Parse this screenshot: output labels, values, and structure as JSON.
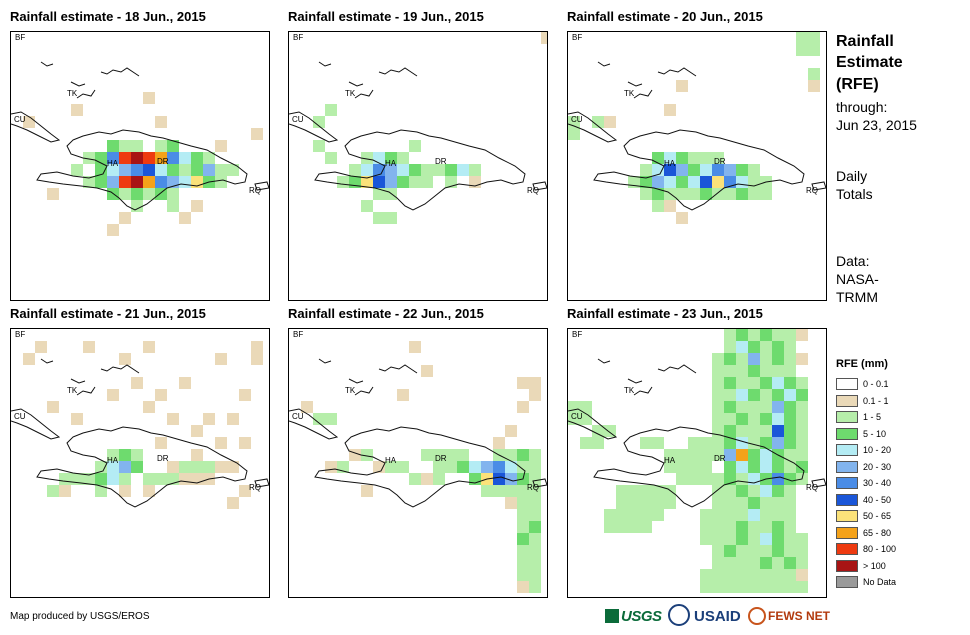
{
  "panels": [
    {
      "title": "Rainfall estimate - 18 Jun., 2015",
      "labels": [
        "BF",
        "CU",
        "TK",
        "HA",
        "DR",
        "RQ"
      ]
    },
    {
      "title": "Rainfall estimate - 19 Jun., 2015",
      "labels": [
        "BF",
        "CU",
        "TK",
        "HA",
        "DR",
        "RQ"
      ]
    },
    {
      "title": "Rainfall estimate - 20 Jun., 2015",
      "labels": [
        "BF",
        "CU",
        "TK",
        "HA",
        "DR",
        "RQ"
      ]
    },
    {
      "title": "Rainfall estimate - 21 Jun., 2015",
      "labels": [
        "BF",
        "CU",
        "TK",
        "HA",
        "DR",
        "RQ"
      ]
    },
    {
      "title": "Rainfall estimate - 22 Jun., 2015",
      "labels": [
        "BF",
        "CU",
        "TK",
        "HA",
        "DR",
        "RQ"
      ]
    },
    {
      "title": "Rainfall estimate - 23 Jun., 2015",
      "labels": [
        "BF",
        "CU",
        "TK",
        "HA",
        "DR",
        "RQ"
      ]
    }
  ],
  "side": {
    "title_line1": "Rainfall",
    "title_line2": "Estimate",
    "title_line3": "(RFE)",
    "through_label": "through:",
    "through_date": "Jun 23, 2015",
    "totals_line1": "Daily",
    "totals_line2": "Totals",
    "data_line1": "Data:",
    "data_line2": "NASA-",
    "data_line3": "TRMM"
  },
  "legend": {
    "title": "RFE (mm)",
    "items": [
      {
        "label": "0 - 0.1",
        "color": "#ffffff"
      },
      {
        "label": "0.1 - 1",
        "color": "#ead9b8"
      },
      {
        "label": "1 - 5",
        "color": "#b6eeaa"
      },
      {
        "label": "5 - 10",
        "color": "#6edb6e"
      },
      {
        "label": "10 - 20",
        "color": "#b4ecf4"
      },
      {
        "label": "20 - 30",
        "color": "#82b4ee"
      },
      {
        "label": "30 - 40",
        "color": "#4a8ce6"
      },
      {
        "label": "40 - 50",
        "color": "#1a56d8"
      },
      {
        "label": "50 - 65",
        "color": "#fbe27a"
      },
      {
        "label": "65 - 80",
        "color": "#f4a21a"
      },
      {
        "label": "80 - 100",
        "color": "#ee3a10"
      },
      {
        "label": "> 100",
        "color": "#a81414"
      },
      {
        "label": "No Data",
        "color": "#9a9a9a"
      }
    ]
  },
  "footer": {
    "credit": "Map produced by USGS/EROS"
  },
  "logos": {
    "usgs": "USGS",
    "usaid": "USAID",
    "fews": "FEWS NET"
  }
}
